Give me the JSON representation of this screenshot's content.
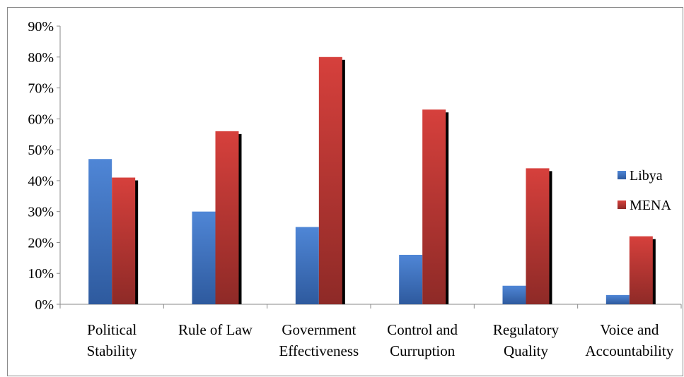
{
  "chart_data": {
    "type": "bar",
    "title": "",
    "xlabel": "",
    "ylabel": "",
    "categories": [
      [
        "Political",
        "Stability"
      ],
      [
        "Rule of Law"
      ],
      [
        "Government",
        "Effectiveness"
      ],
      [
        "Control and",
        "Curruption"
      ],
      [
        "Regulatory",
        "Quality"
      ],
      [
        "Voice and",
        "Accountability"
      ]
    ],
    "series": [
      {
        "name": "Libya",
        "values": [
          47,
          30,
          25,
          16,
          6,
          3
        ],
        "color": "#4472C4"
      },
      {
        "name": "MENA",
        "values": [
          41,
          56,
          80,
          63,
          44,
          22
        ],
        "color": "#C0504D"
      }
    ],
    "ylim": [
      0,
      90
    ],
    "yticks": [
      0,
      10,
      20,
      30,
      40,
      50,
      60,
      70,
      80,
      90
    ],
    "ytick_labels": [
      "0%",
      "10%",
      "20%",
      "30%",
      "40%",
      "50%",
      "60%",
      "70%",
      "80%",
      "90%"
    ],
    "legend": "right",
    "grid": false
  }
}
